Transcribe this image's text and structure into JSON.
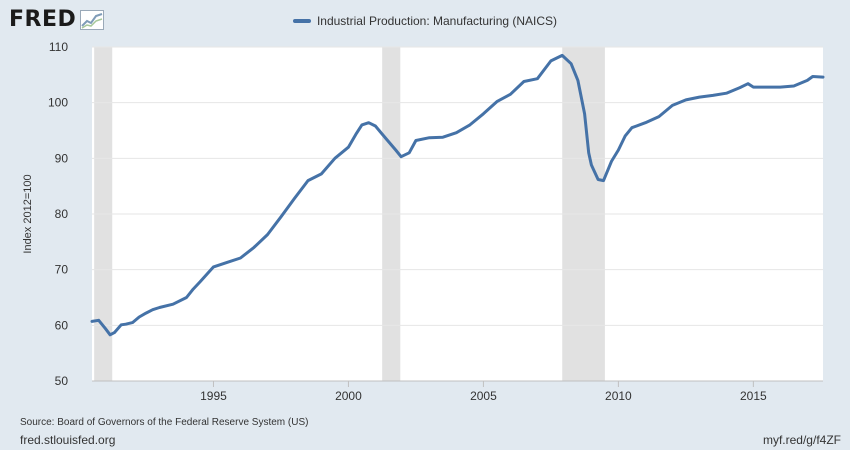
{
  "brand": {
    "logo_text": "FRED",
    "logo_icon": "chart-trend-icon"
  },
  "footer": {
    "source": "Source: Board of Governors of the Federal Reserve System (US)",
    "site": "fred.stlouisfed.org",
    "short_url": "myf.red/g/f4ZF"
  },
  "colors": {
    "series": "#4572a7",
    "recession": "#e1e1e1",
    "background": "#e1e9f0",
    "plot": "#ffffff",
    "grid": "#e6e6e6"
  },
  "chart_data": {
    "type": "line",
    "title": "",
    "xlabel": "",
    "ylabel": "Index 2012=100",
    "ylim": [
      50,
      110
    ],
    "yticks": [
      50,
      60,
      70,
      80,
      90,
      100,
      110
    ],
    "xlim": [
      1990.5,
      2017.58
    ],
    "xticks": [
      "1995",
      "2000",
      "2005",
      "2010",
      "2015"
    ],
    "grid": true,
    "legend_position": "top-center",
    "recessions": [
      [
        1990.58,
        1991.25
      ],
      [
        2001.25,
        2001.92
      ],
      [
        2007.92,
        2009.5
      ]
    ],
    "series": [
      {
        "name": "Industrial Production: Manufacturing (NAICS)",
        "x": [
          1990.5,
          1990.75,
          1991.0,
          1991.17,
          1991.33,
          1991.58,
          1991.75,
          1992.0,
          1992.25,
          1992.5,
          1992.75,
          1993.0,
          1993.5,
          1994.0,
          1994.25,
          1994.5,
          1995.0,
          1995.5,
          1996.0,
          1996.5,
          1997.0,
          1997.5,
          1998.0,
          1998.5,
          1999.0,
          1999.5,
          2000.0,
          2000.3,
          2000.5,
          2000.75,
          2001.0,
          2001.4,
          2001.75,
          2001.95,
          2002.25,
          2002.5,
          2003.0,
          2003.5,
          2004.0,
          2004.5,
          2005.0,
          2005.5,
          2006.0,
          2006.5,
          2007.0,
          2007.5,
          2007.92,
          2008.25,
          2008.5,
          2008.75,
          2008.9,
          2009.0,
          2009.25,
          2009.45,
          2009.75,
          2010.0,
          2010.25,
          2010.5,
          2011.0,
          2011.5,
          2012.0,
          2012.5,
          2013.0,
          2013.5,
          2014.0,
          2014.5,
          2014.8,
          2015.0,
          2015.5,
          2016.0,
          2016.5,
          2017.0,
          2017.2,
          2017.58
        ],
        "values": [
          60.7,
          60.9,
          59.4,
          58.3,
          58.7,
          60.1,
          60.2,
          60.5,
          61.5,
          62.2,
          62.8,
          63.2,
          63.8,
          65.0,
          66.5,
          67.8,
          70.5,
          71.3,
          72.1,
          74.0,
          76.3,
          79.5,
          82.8,
          86.0,
          87.2,
          90.0,
          92.0,
          94.5,
          96.0,
          96.4,
          95.8,
          93.5,
          91.5,
          90.3,
          91.0,
          93.2,
          93.7,
          93.8,
          94.6,
          96.0,
          98.0,
          100.2,
          101.5,
          103.8,
          104.3,
          107.5,
          108.5,
          107.0,
          104.0,
          98.0,
          91.0,
          88.8,
          86.2,
          86.0,
          89.5,
          91.5,
          94.0,
          95.5,
          96.4,
          97.5,
          99.5,
          100.5,
          101.0,
          101.3,
          101.7,
          102.7,
          103.4,
          102.8,
          102.8,
          102.8,
          103.0,
          104.0,
          104.7,
          104.6
        ]
      }
    ]
  }
}
